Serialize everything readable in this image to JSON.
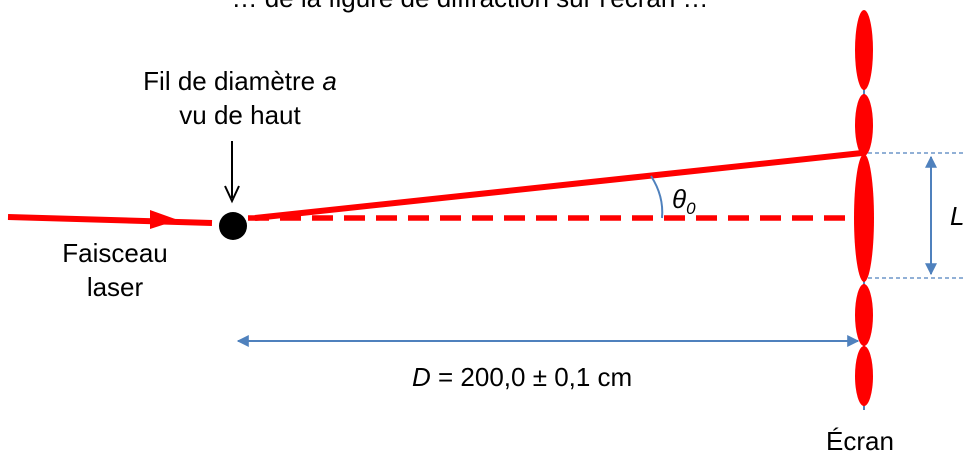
{
  "diagram": {
    "colors": {
      "beam": "#ff0000",
      "dimension": "#4f81bd",
      "wire": "#000000",
      "fringe_outline": "#c00000"
    },
    "partial_caption": "… de la figure de diffraction sur l'écran …",
    "wire_label": {
      "line1_prefix": "Fil de diamètre ",
      "line1_var": "a",
      "line2": "vu de haut"
    },
    "laser_label": {
      "line1": "Faisceau",
      "line2": "laser"
    },
    "angle_label": {
      "symbol": "θ",
      "subscript": "0"
    },
    "width_label": "L",
    "distance_label": {
      "var": "D",
      "text": " = 200,0 ± 0,1 cm"
    },
    "screen_label": "Écran",
    "icons": {
      "wire": "wire-cross-section-icon",
      "pointer": "down-arrow-icon"
    }
  }
}
